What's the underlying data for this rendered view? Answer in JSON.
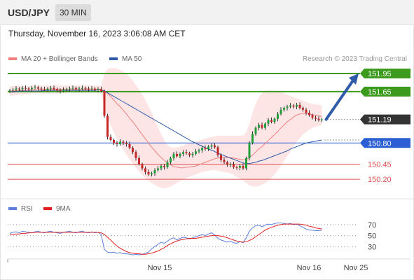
{
  "header": {
    "symbol": "USD/JPY",
    "timeframe": "30 MIN"
  },
  "datetime": "Thursday, November 16, 2023 3:06:08 AM CET",
  "legend": {
    "ma20_label": "MA 20 + Bollinger Bands",
    "ma50_label": "MA 50",
    "credit": "Research © 2023 Trading Central"
  },
  "rsi_legend": {
    "rsi_label": "RSI",
    "ma_label": "9MA"
  },
  "colors": {
    "up": "#4caf50",
    "down": "#f2a8a8",
    "candle_up": "#1f9e3a",
    "candle_down": "#c62828",
    "bollinger_fill": "#fde0e0",
    "ma20": "#f08080",
    "ma50": "#2e5aa8",
    "target_green": "#3c9a1c",
    "pivot_blue": "#2c5fd4",
    "support_red": "#e05050",
    "current_bg": "#333333",
    "arrow": "#2e5aa8",
    "rsi": "#5b7fdb",
    "rsi_ma": "#e02020"
  },
  "chart_data": {
    "type": "candlestick",
    "ylim": [
      149.9,
      152.1
    ],
    "x_tick_labels": [
      "Nov 15",
      "Nov 16",
      "Nov 25"
    ],
    "price_levels": [
      {
        "value": 151.95,
        "label": "151.95",
        "kind": "target"
      },
      {
        "value": 151.65,
        "label": "151.65",
        "kind": "target"
      },
      {
        "value": 151.19,
        "label": "151.19",
        "kind": "current"
      },
      {
        "value": 150.8,
        "label": "150.80",
        "kind": "pivot"
      },
      {
        "value": 150.45,
        "label": "150.45",
        "kind": "support"
      },
      {
        "value": 150.2,
        "label": "150.20",
        "kind": "support"
      }
    ],
    "close": [
      151.67,
      151.68,
      151.7,
      151.69,
      151.71,
      151.7,
      151.69,
      151.71,
      151.72,
      151.7,
      151.69,
      151.68,
      151.7,
      151.71,
      151.69,
      151.67,
      151.66,
      151.68,
      151.69,
      151.7,
      151.71,
      151.69,
      151.7,
      151.71,
      151.7,
      151.69,
      151.7,
      151.68,
      151.69,
      151.66,
      151.25,
      150.9,
      150.85,
      150.8,
      150.78,
      150.82,
      150.8,
      150.78,
      150.72,
      150.65,
      150.55,
      150.45,
      150.38,
      150.32,
      150.28,
      150.3,
      150.35,
      150.38,
      150.42,
      150.4,
      150.48,
      150.55,
      150.62,
      150.58,
      150.62,
      150.65,
      150.63,
      150.6,
      150.62,
      150.66,
      150.68,
      150.72,
      150.7,
      150.74,
      150.76,
      150.73,
      150.6,
      150.52,
      150.48,
      150.44,
      150.45,
      150.4,
      150.39,
      150.42,
      150.38,
      150.55,
      150.8,
      150.95,
      151.05,
      151.1,
      151.05,
      151.12,
      151.18,
      151.15,
      151.2,
      151.28,
      151.35,
      151.38,
      151.4,
      151.42,
      151.4,
      151.43,
      151.38,
      151.35,
      151.3,
      151.26,
      151.22,
      151.2,
      151.18,
      151.19
    ],
    "ma20": [
      151.66,
      151.66,
      151.67,
      151.67,
      151.67,
      151.67,
      151.68,
      151.68,
      151.68,
      151.68,
      151.68,
      151.68,
      151.68,
      151.69,
      151.69,
      151.69,
      151.69,
      151.69,
      151.69,
      151.69,
      151.69,
      151.69,
      151.69,
      151.69,
      151.69,
      151.69,
      151.69,
      151.69,
      151.69,
      151.69,
      151.66,
      151.62,
      151.57,
      151.51,
      151.45,
      151.4,
      151.34,
      151.28,
      151.21,
      151.15,
      151.08,
      151.01,
      150.94,
      150.87,
      150.8,
      150.73,
      150.67,
      150.61,
      150.56,
      150.51,
      150.47,
      150.44,
      150.41,
      150.4,
      150.39,
      150.39,
      150.4,
      150.4,
      150.41,
      150.42,
      150.44,
      150.46,
      150.48,
      150.5,
      150.52,
      150.54,
      150.55,
      150.56,
      150.56,
      150.56,
      150.56,
      150.55,
      150.54,
      150.53,
      150.52,
      150.53,
      150.56,
      150.6,
      150.65,
      150.7,
      150.74,
      150.79,
      150.84,
      150.89,
      150.94,
      150.99,
      151.05,
      151.1,
      151.15,
      151.19,
      151.23,
      151.26,
      151.28,
      151.29,
      151.29,
      151.28,
      151.27,
      151.26,
      151.25,
      151.24
    ],
    "bb_upper": [
      151.74,
      151.74,
      151.74,
      151.74,
      151.74,
      151.74,
      151.74,
      151.75,
      151.75,
      151.75,
      151.75,
      151.75,
      151.75,
      151.75,
      151.75,
      151.75,
      151.75,
      151.75,
      151.75,
      151.75,
      151.75,
      151.75,
      151.75,
      151.75,
      151.75,
      151.75,
      151.75,
      151.75,
      151.75,
      151.75,
      151.95,
      152.02,
      152.04,
      152.04,
      152.03,
      152.01,
      151.98,
      151.94,
      151.89,
      151.83,
      151.76,
      151.68,
      151.6,
      151.51,
      151.41,
      151.3,
      151.18,
      151.06,
      150.95,
      150.85,
      150.77,
      150.73,
      150.72,
      150.73,
      150.74,
      150.76,
      150.78,
      150.8,
      150.81,
      150.82,
      150.84,
      150.86,
      150.87,
      150.89,
      150.9,
      150.91,
      150.92,
      150.92,
      150.92,
      150.92,
      150.92,
      150.92,
      150.92,
      150.92,
      150.92,
      150.98,
      151.12,
      151.3,
      151.45,
      151.56,
      151.62,
      151.66,
      151.67,
      151.67,
      151.66,
      151.65,
      151.64,
      151.62,
      151.6,
      151.58,
      151.56,
      151.54,
      151.52,
      151.5,
      151.48,
      151.46,
      151.45,
      151.44,
      151.43,
      151.42
    ],
    "bb_lower": [
      151.58,
      151.58,
      151.59,
      151.6,
      151.6,
      151.61,
      151.61,
      151.62,
      151.62,
      151.62,
      151.62,
      151.62,
      151.62,
      151.62,
      151.62,
      151.62,
      151.62,
      151.63,
      151.63,
      151.63,
      151.63,
      151.63,
      151.63,
      151.63,
      151.63,
      151.63,
      151.63,
      151.63,
      151.63,
      151.63,
      151.36,
      151.2,
      151.1,
      150.98,
      150.87,
      150.78,
      150.69,
      150.61,
      150.53,
      150.46,
      150.39,
      150.33,
      150.27,
      150.22,
      150.18,
      150.14,
      150.11,
      150.08,
      150.06,
      150.05,
      150.06,
      150.08,
      150.11,
      150.14,
      150.17,
      150.19,
      150.22,
      150.24,
      150.26,
      150.28,
      150.3,
      150.32,
      150.33,
      150.34,
      150.35,
      150.35,
      150.34,
      150.33,
      150.32,
      150.31,
      150.3,
      150.27,
      150.24,
      150.21,
      150.18,
      150.14,
      150.1,
      150.08,
      150.08,
      150.09,
      150.11,
      150.14,
      150.17,
      150.22,
      150.28,
      150.35,
      150.42,
      150.5,
      150.58,
      150.66,
      150.74,
      150.82,
      150.88,
      150.94,
      150.98,
      151.02,
      151.05,
      151.07,
      151.08,
      151.1
    ],
    "ma50": [
      151.65,
      151.65,
      151.65,
      151.66,
      151.66,
      151.66,
      151.66,
      151.66,
      151.66,
      151.66,
      151.66,
      151.67,
      151.67,
      151.67,
      151.67,
      151.67,
      151.67,
      151.67,
      151.67,
      151.67,
      151.67,
      151.67,
      151.67,
      151.67,
      151.67,
      151.67,
      151.67,
      151.67,
      151.68,
      151.68,
      151.66,
      151.63,
      151.6,
      151.57,
      151.54,
      151.51,
      151.48,
      151.45,
      151.42,
      151.39,
      151.36,
      151.33,
      151.3,
      151.27,
      151.24,
      151.21,
      151.18,
      151.15,
      151.12,
      151.09,
      151.06,
      151.03,
      151.0,
      150.97,
      150.94,
      150.91,
      150.88,
      150.85,
      150.82,
      150.8,
      150.77,
      150.75,
      150.72,
      150.7,
      150.68,
      150.66,
      150.63,
      150.61,
      150.59,
      150.57,
      150.55,
      150.53,
      150.51,
      150.49,
      150.47,
      150.46,
      150.46,
      150.47,
      150.48,
      150.5,
      150.51,
      150.53,
      150.55,
      150.57,
      150.59,
      150.61,
      150.63,
      150.65,
      150.67,
      150.7,
      150.72,
      150.74,
      150.76,
      150.78,
      150.8,
      150.81,
      150.82,
      150.83,
      150.84,
      150.85
    ],
    "rsi": {
      "ylim": [
        10,
        80
      ],
      "levels": [
        70,
        50,
        30
      ],
      "rsi": [
        54,
        56,
        57,
        55,
        58,
        57,
        56,
        55,
        57,
        58,
        56,
        55,
        57,
        58,
        56,
        55,
        54,
        56,
        57,
        58,
        56,
        55,
        57,
        58,
        56,
        55,
        57,
        55,
        56,
        52,
        25,
        20,
        19,
        20,
        18,
        19,
        17,
        17,
        16,
        15,
        16,
        15,
        16,
        18,
        20,
        26,
        30,
        34,
        38,
        36,
        40,
        44,
        46,
        42,
        45,
        47,
        46,
        44,
        46,
        48,
        50,
        52,
        50,
        53,
        55,
        51,
        45,
        42,
        40,
        38,
        40,
        37,
        36,
        39,
        37,
        46,
        58,
        64,
        68,
        69,
        66,
        69,
        71,
        70,
        72,
        73,
        73,
        72,
        71,
        72,
        70,
        71,
        68,
        65,
        62,
        60,
        60,
        59,
        59,
        60
      ],
      "ma9": [
        52,
        52,
        53,
        53,
        54,
        54,
        55,
        55,
        56,
        56,
        56,
        56,
        56,
        56,
        56,
        56,
        56,
        56,
        56,
        56,
        56,
        56,
        56,
        56,
        56,
        56,
        56,
        56,
        56,
        55,
        52,
        47,
        42,
        36,
        31,
        27,
        24,
        21,
        19,
        18,
        17,
        17,
        16,
        16,
        17,
        18,
        20,
        22,
        25,
        28,
        32,
        35,
        38,
        40,
        42,
        43,
        44,
        45,
        45,
        45,
        46,
        47,
        48,
        49,
        50,
        50,
        50,
        49,
        48,
        46,
        44,
        42,
        40,
        39,
        38,
        39,
        41,
        44,
        48,
        52,
        56,
        60,
        63,
        65,
        67,
        69,
        70,
        71,
        71,
        71,
        71,
        71,
        71,
        70,
        69,
        67,
        66,
        64,
        63,
        62
      ]
    }
  }
}
